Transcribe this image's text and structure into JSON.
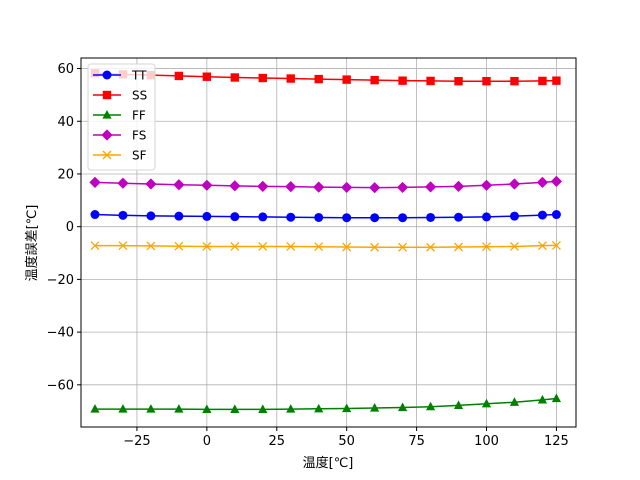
{
  "chart_data": {
    "type": "line",
    "xlabel": "温度[℃]",
    "ylabel": "温度誤差[℃]",
    "xlim": [
      -45,
      132
    ],
    "ylim": [
      -76,
      64
    ],
    "xticks": [
      -25,
      0,
      25,
      50,
      75,
      100,
      125
    ],
    "yticks": [
      -60,
      -40,
      -20,
      0,
      20,
      40,
      60
    ],
    "xtick_labels": [
      "−25",
      "0",
      "25",
      "50",
      "75",
      "100",
      "125"
    ],
    "ytick_labels": [
      "−60",
      "−40",
      "−20",
      "0",
      "20",
      "40",
      "60"
    ],
    "grid": true,
    "legend_position": "top-left",
    "x": [
      -40,
      -30,
      -20,
      -10,
      0,
      10,
      20,
      30,
      40,
      50,
      60,
      70,
      80,
      90,
      100,
      110,
      120,
      125
    ],
    "series": [
      {
        "name": "TT",
        "color": "#0000ff",
        "marker": "circle",
        "values": [
          4.6,
          4.3,
          4.1,
          4.0,
          3.9,
          3.8,
          3.7,
          3.6,
          3.5,
          3.4,
          3.4,
          3.4,
          3.5,
          3.6,
          3.7,
          4.0,
          4.4,
          4.6
        ]
      },
      {
        "name": "SS",
        "color": "#ff0000",
        "marker": "square",
        "values": [
          58.2,
          57.8,
          57.5,
          57.2,
          56.9,
          56.6,
          56.4,
          56.2,
          56.0,
          55.8,
          55.6,
          55.4,
          55.3,
          55.2,
          55.2,
          55.2,
          55.3,
          55.4
        ]
      },
      {
        "name": "FF",
        "color": "#008000",
        "marker": "triangle",
        "values": [
          -69.2,
          -69.2,
          -69.2,
          -69.2,
          -69.3,
          -69.3,
          -69.3,
          -69.2,
          -69.1,
          -69.0,
          -68.8,
          -68.6,
          -68.3,
          -67.8,
          -67.2,
          -66.6,
          -65.7,
          -65.2
        ]
      },
      {
        "name": "FS",
        "color": "#c000c0",
        "marker": "diamond",
        "values": [
          16.8,
          16.5,
          16.2,
          15.9,
          15.7,
          15.5,
          15.3,
          15.2,
          15.0,
          14.9,
          14.8,
          14.9,
          15.1,
          15.3,
          15.7,
          16.2,
          16.8,
          17.2
        ]
      },
      {
        "name": "SF",
        "color": "#ffa500",
        "marker": "x",
        "values": [
          -7.2,
          -7.2,
          -7.3,
          -7.4,
          -7.5,
          -7.5,
          -7.5,
          -7.5,
          -7.6,
          -7.7,
          -7.8,
          -7.8,
          -7.8,
          -7.7,
          -7.6,
          -7.5,
          -7.2,
          -7.1
        ]
      }
    ]
  }
}
